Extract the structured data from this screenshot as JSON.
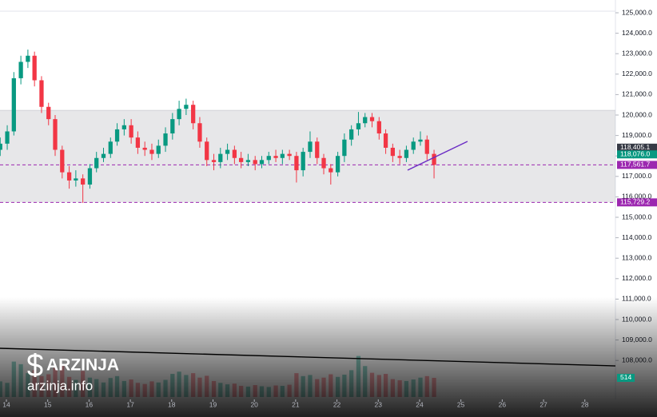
{
  "chart_data": {
    "type": "candlestick",
    "up_color": "#089981",
    "down_color": "#f23645",
    "xlim": [
      13.845,
      28.74
    ],
    "ylim": [
      106094,
      125625
    ],
    "xticks": [
      14,
      15,
      16,
      17,
      18,
      19,
      20,
      21,
      22,
      23,
      24,
      25,
      26,
      27,
      28
    ],
    "yticks": [
      {
        "value": 125000,
        "label": "125,000.0"
      },
      {
        "value": 124000,
        "label": "124,000.0"
      },
      {
        "value": 123000,
        "label": "123,000.0"
      },
      {
        "value": 122000,
        "label": "122,000.0"
      },
      {
        "value": 121000,
        "label": "121,000.0"
      },
      {
        "value": 120000,
        "label": "120,000.0"
      },
      {
        "value": 119000,
        "label": "119,000.0"
      },
      {
        "value": 118000,
        "label": "118,000.0"
      },
      {
        "value": 117000,
        "label": "117,000.0"
      },
      {
        "value": 116000,
        "label": "116,000.0"
      },
      {
        "value": 115000,
        "label": "115,000.0"
      },
      {
        "value": 114000,
        "label": "114,000.0"
      },
      {
        "value": 113000,
        "label": "113,000.0"
      },
      {
        "value": 112000,
        "label": "112,000.0"
      },
      {
        "value": 111000,
        "label": "111,000.0"
      },
      {
        "value": 110000,
        "label": "110,000.0"
      },
      {
        "value": 109000,
        "label": "109,000.0"
      },
      {
        "value": 108000,
        "label": "108,000.0"
      }
    ],
    "x": [
      13.85,
      14.02,
      14.18,
      14.35,
      14.52,
      14.68,
      14.85,
      15.02,
      15.18,
      15.35,
      15.52,
      15.68,
      15.85,
      16.02,
      16.18,
      16.35,
      16.52,
      16.68,
      16.85,
      17.02,
      17.18,
      17.35,
      17.52,
      17.68,
      17.85,
      18.02,
      18.18,
      18.35,
      18.52,
      18.68,
      18.85,
      19.02,
      19.18,
      19.35,
      19.52,
      19.68,
      19.85,
      20.02,
      20.18,
      20.35,
      20.52,
      20.68,
      20.85,
      21.02,
      21.18,
      21.35,
      21.52,
      21.68,
      21.85,
      22.02,
      22.18,
      22.35,
      22.52,
      22.68,
      22.85,
      23.02,
      23.18,
      23.35,
      23.52,
      23.68,
      23.85,
      24.02,
      24.18,
      24.35
    ],
    "open": [
      118300,
      118600,
      119200,
      121800,
      122600,
      122900,
      121700,
      120400,
      119800,
      118300,
      117200,
      116800,
      116900,
      116600,
      117400,
      117900,
      118100,
      118700,
      119300,
      119500,
      118900,
      118400,
      118300,
      118100,
      118500,
      119100,
      119800,
      120300,
      120500,
      119600,
      118700,
      117800,
      117700,
      118100,
      118300,
      117900,
      117700,
      117800,
      117600,
      117800,
      118000,
      117900,
      118100,
      118000,
      117300,
      118200,
      118700,
      117900,
      117400,
      117200,
      118000,
      118800,
      119300,
      119600,
      119900,
      119700,
      119100,
      118400,
      118000,
      117900,
      118300,
      118700,
      118800,
      118100
    ],
    "high": [
      118900,
      119500,
      122100,
      122900,
      123200,
      123100,
      121900,
      120600,
      120000,
      118500,
      117500,
      117300,
      117100,
      117600,
      118200,
      118400,
      118900,
      119600,
      119800,
      119800,
      119200,
      118700,
      118600,
      118800,
      119400,
      120100,
      120700,
      120800,
      120700,
      119900,
      118900,
      118100,
      118400,
      118600,
      118500,
      118200,
      118100,
      118000,
      118000,
      118200,
      118300,
      118300,
      118300,
      118200,
      118400,
      119200,
      118900,
      118100,
      117600,
      118200,
      119100,
      119500,
      120150,
      120100,
      120100,
      119900,
      119300,
      118600,
      118300,
      118500,
      118900,
      119200,
      119000,
      118300
    ],
    "low": [
      118000,
      118300,
      119000,
      121500,
      122300,
      121400,
      120100,
      119500,
      118000,
      116900,
      116400,
      116500,
      115700,
      116400,
      117200,
      117700,
      117900,
      118500,
      119000,
      118600,
      118100,
      118000,
      117800,
      117900,
      118200,
      118800,
      119500,
      120000,
      119300,
      118400,
      117500,
      117300,
      117400,
      117800,
      117600,
      117400,
      117500,
      117300,
      117400,
      117600,
      117700,
      117600,
      117800,
      116700,
      117000,
      117900,
      117600,
      117100,
      116600,
      117000,
      117700,
      118500,
      119000,
      119400,
      119400,
      118800,
      118100,
      117700,
      117600,
      117700,
      118100,
      118500,
      117800,
      116900
    ],
    "close": [
      118600,
      119200,
      121800,
      122600,
      122900,
      121700,
      120400,
      119800,
      118300,
      117200,
      116800,
      116900,
      116600,
      117400,
      117900,
      118100,
      118700,
      119300,
      119500,
      118900,
      118400,
      118300,
      118100,
      118500,
      119100,
      119800,
      120300,
      120500,
      119600,
      118700,
      117800,
      117700,
      118100,
      118300,
      117900,
      117700,
      117800,
      117600,
      117800,
      118000,
      117900,
      118100,
      118000,
      117300,
      118200,
      118700,
      117900,
      117400,
      117200,
      118000,
      118800,
      119300,
      119600,
      119900,
      119700,
      119100,
      118400,
      118000,
      117900,
      118300,
      118700,
      118800,
      118100,
      117561.7
    ],
    "volumes": [
      420,
      380,
      950,
      880,
      640,
      720,
      560,
      610,
      780,
      830,
      540,
      460,
      700,
      520,
      480,
      390,
      510,
      560,
      430,
      470,
      380,
      350,
      420,
      390,
      460,
      620,
      680,
      590,
      640,
      520,
      570,
      430,
      380,
      340,
      360,
      300,
      280,
      320,
      290,
      270,
      310,
      300,
      330,
      640,
      560,
      590,
      480,
      520,
      610,
      540,
      600,
      720,
      1100,
      830,
      650,
      590,
      620,
      480,
      450,
      430,
      470,
      520,
      560,
      514
    ],
    "vlim": [
      0,
      1220
    ],
    "zone": [
      115729.2,
      120230
    ],
    "levels": [
      117561.7,
      115729.2
    ],
    "price_labels": [
      {
        "value": 118405.1,
        "label": "118,405.1",
        "color": "#363a45"
      },
      {
        "value": 118076.0,
        "label": "118,076.0",
        "color": "#089981"
      },
      {
        "value": 117561.7,
        "label": "117,561.7",
        "color": "#9c27b0"
      },
      {
        "value": 115729.2,
        "label": "115,729.2",
        "color": "#9c27b0"
      }
    ],
    "trend_lines": [
      {
        "x": [
          23.71,
          25.16
        ],
        "y": [
          117305,
          118711
        ],
        "color": "#6a2bc4"
      },
      {
        "x": [
          13.845,
          28.74
        ],
        "y": [
          108594,
          107734
        ],
        "color": "#000000"
      }
    ]
  },
  "watermark": {
    "brand": "ARZINJA",
    "site": "arzinja.info"
  }
}
